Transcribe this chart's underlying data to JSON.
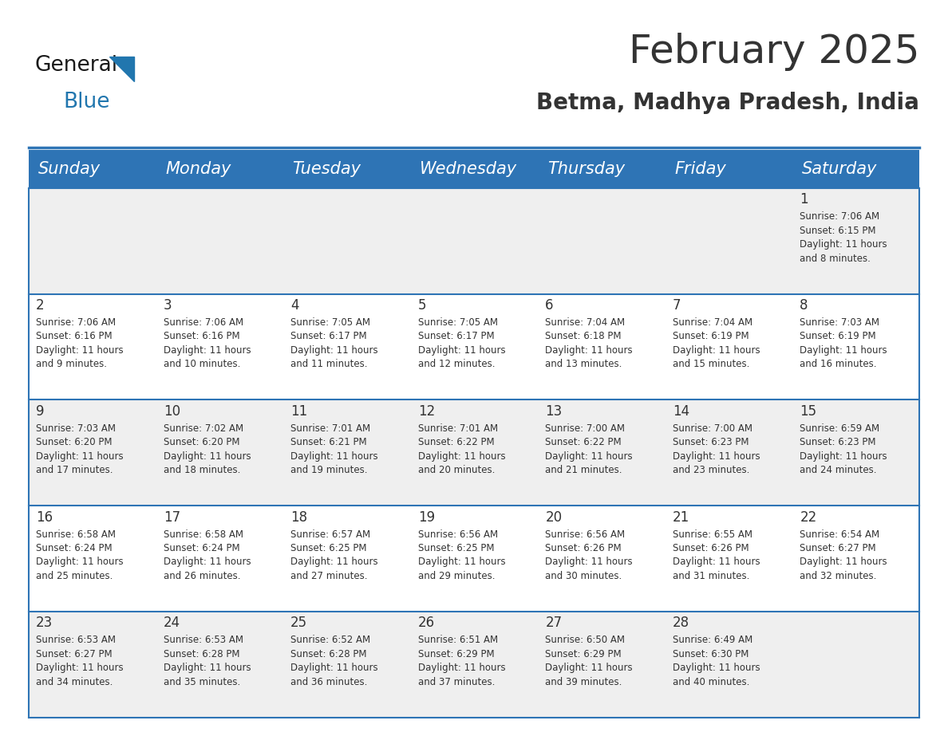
{
  "title": "February 2025",
  "subtitle": "Betma, Madhya Pradesh, India",
  "header_bg": "#2E74B5",
  "header_text_color": "#FFFFFF",
  "day_names": [
    "Sunday",
    "Monday",
    "Tuesday",
    "Wednesday",
    "Thursday",
    "Friday",
    "Saturday"
  ],
  "title_fontsize": 36,
  "subtitle_fontsize": 20,
  "header_fontsize": 15,
  "cell_fontsize": 8.5,
  "day_number_fontsize": 12,
  "bg_color": "#FFFFFF",
  "cell_bg_even": "#FFFFFF",
  "cell_bg_odd": "#EFEFEF",
  "grid_color": "#2E74B5",
  "text_color": "#333333",
  "logo_general_color": "#1A1A1A",
  "logo_blue_color": "#2176AE",
  "calendar_data": [
    [
      null,
      null,
      null,
      null,
      null,
      null,
      {
        "day": 1,
        "sunrise": "7:06 AM",
        "sunset": "6:15 PM",
        "daylight": "11 hours and 8 minutes"
      }
    ],
    [
      {
        "day": 2,
        "sunrise": "7:06 AM",
        "sunset": "6:16 PM",
        "daylight": "11 hours and 9 minutes"
      },
      {
        "day": 3,
        "sunrise": "7:06 AM",
        "sunset": "6:16 PM",
        "daylight": "11 hours and 10 minutes"
      },
      {
        "day": 4,
        "sunrise": "7:05 AM",
        "sunset": "6:17 PM",
        "daylight": "11 hours and 11 minutes"
      },
      {
        "day": 5,
        "sunrise": "7:05 AM",
        "sunset": "6:17 PM",
        "daylight": "11 hours and 12 minutes"
      },
      {
        "day": 6,
        "sunrise": "7:04 AM",
        "sunset": "6:18 PM",
        "daylight": "11 hours and 13 minutes"
      },
      {
        "day": 7,
        "sunrise": "7:04 AM",
        "sunset": "6:19 PM",
        "daylight": "11 hours and 15 minutes"
      },
      {
        "day": 8,
        "sunrise": "7:03 AM",
        "sunset": "6:19 PM",
        "daylight": "11 hours and 16 minutes"
      }
    ],
    [
      {
        "day": 9,
        "sunrise": "7:03 AM",
        "sunset": "6:20 PM",
        "daylight": "11 hours and 17 minutes"
      },
      {
        "day": 10,
        "sunrise": "7:02 AM",
        "sunset": "6:20 PM",
        "daylight": "11 hours and 18 minutes"
      },
      {
        "day": 11,
        "sunrise": "7:01 AM",
        "sunset": "6:21 PM",
        "daylight": "11 hours and 19 minutes"
      },
      {
        "day": 12,
        "sunrise": "7:01 AM",
        "sunset": "6:22 PM",
        "daylight": "11 hours and 20 minutes"
      },
      {
        "day": 13,
        "sunrise": "7:00 AM",
        "sunset": "6:22 PM",
        "daylight": "11 hours and 21 minutes"
      },
      {
        "day": 14,
        "sunrise": "7:00 AM",
        "sunset": "6:23 PM",
        "daylight": "11 hours and 23 minutes"
      },
      {
        "day": 15,
        "sunrise": "6:59 AM",
        "sunset": "6:23 PM",
        "daylight": "11 hours and 24 minutes"
      }
    ],
    [
      {
        "day": 16,
        "sunrise": "6:58 AM",
        "sunset": "6:24 PM",
        "daylight": "11 hours and 25 minutes"
      },
      {
        "day": 17,
        "sunrise": "6:58 AM",
        "sunset": "6:24 PM",
        "daylight": "11 hours and 26 minutes"
      },
      {
        "day": 18,
        "sunrise": "6:57 AM",
        "sunset": "6:25 PM",
        "daylight": "11 hours and 27 minutes"
      },
      {
        "day": 19,
        "sunrise": "6:56 AM",
        "sunset": "6:25 PM",
        "daylight": "11 hours and 29 minutes"
      },
      {
        "day": 20,
        "sunrise": "6:56 AM",
        "sunset": "6:26 PM",
        "daylight": "11 hours and 30 minutes"
      },
      {
        "day": 21,
        "sunrise": "6:55 AM",
        "sunset": "6:26 PM",
        "daylight": "11 hours and 31 minutes"
      },
      {
        "day": 22,
        "sunrise": "6:54 AM",
        "sunset": "6:27 PM",
        "daylight": "11 hours and 32 minutes"
      }
    ],
    [
      {
        "day": 23,
        "sunrise": "6:53 AM",
        "sunset": "6:27 PM",
        "daylight": "11 hours and 34 minutes"
      },
      {
        "day": 24,
        "sunrise": "6:53 AM",
        "sunset": "6:28 PM",
        "daylight": "11 hours and 35 minutes"
      },
      {
        "day": 25,
        "sunrise": "6:52 AM",
        "sunset": "6:28 PM",
        "daylight": "11 hours and 36 minutes"
      },
      {
        "day": 26,
        "sunrise": "6:51 AM",
        "sunset": "6:29 PM",
        "daylight": "11 hours and 37 minutes"
      },
      {
        "day": 27,
        "sunrise": "6:50 AM",
        "sunset": "6:29 PM",
        "daylight": "11 hours and 39 minutes"
      },
      {
        "day": 28,
        "sunrise": "6:49 AM",
        "sunset": "6:30 PM",
        "daylight": "11 hours and 40 minutes"
      },
      null
    ]
  ]
}
